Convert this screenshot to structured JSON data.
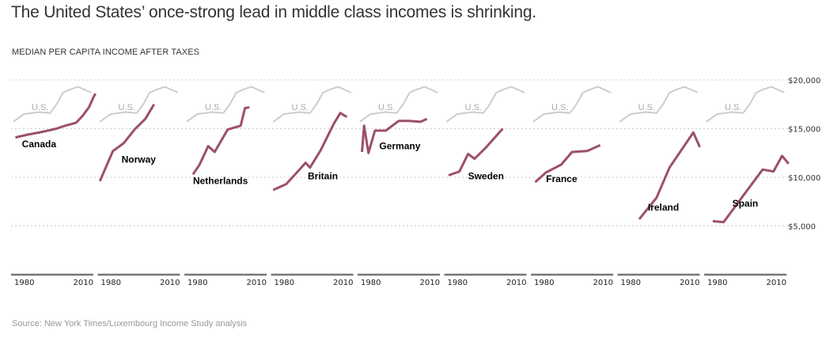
{
  "title": "The United States’ once-strong lead in middle class incomes is shrinking.",
  "subtitle": "MEDIAN PER CAPITA INCOME AFTER TAXES",
  "source": "Source: New York Times/Luxembourg Income Study analysis",
  "colors": {
    "country": "#9b4f6d",
    "us": "#cccccc",
    "grid": "#cccccc",
    "axis": "#777777"
  },
  "chart_data": {
    "type": "line",
    "layout": "small-multiples",
    "title": "The United States’ once-strong lead in middle class incomes is shrinking.",
    "ylabel": "MEDIAN PER CAPITA INCOME AFTER TAXES",
    "xlim": [
      1973,
      2011
    ],
    "ylim": [
      0,
      20000
    ],
    "yticks": [
      5000,
      10000,
      15000,
      20000
    ],
    "ytick_labels": [
      "$5,000",
      "$10,000",
      "$15,000",
      "$20,000"
    ],
    "xtick_labels": [
      "1980",
      "2010"
    ],
    "grid": true,
    "reference_series": {
      "name": "U.S.",
      "label": "U.S.",
      "points": [
        [
          1974,
          15700
        ],
        [
          1979,
          16500
        ],
        [
          1986,
          16700
        ],
        [
          1991,
          16600
        ],
        [
          1994,
          17500
        ],
        [
          1997,
          18700
        ],
        [
          2000,
          19000
        ],
        [
          2004,
          19300
        ],
        [
          2010,
          18700
        ]
      ]
    },
    "panels": [
      {
        "name": "Canada",
        "label_pos": [
          1978,
          13100
        ],
        "points": [
          [
            1975,
            14100
          ],
          [
            1981,
            14400
          ],
          [
            1986,
            14600
          ],
          [
            1990,
            14800
          ],
          [
            1994,
            15000
          ],
          [
            1998,
            15300
          ],
          [
            2003,
            15600
          ],
          [
            2006,
            16300
          ],
          [
            2009,
            17200
          ],
          [
            2011,
            18200
          ],
          [
            2012,
            18600
          ]
        ]
      },
      {
        "name": "Norway",
        "label_pos": [
          1984,
          11500
        ],
        "points": [
          [
            1974,
            9600
          ],
          [
            1980,
            12700
          ],
          [
            1985,
            13500
          ],
          [
            1990,
            14900
          ],
          [
            1995,
            16000
          ],
          [
            1999,
            17500
          ]
        ]
      },
      {
        "name": "Netherlands",
        "label_pos": [
          1977,
          9300
        ],
        "points": [
          [
            1977,
            10300
          ],
          [
            1980,
            11300
          ],
          [
            1984,
            13200
          ],
          [
            1987,
            12600
          ],
          [
            1993,
            14900
          ],
          [
            1999,
            15300
          ],
          [
            2001,
            17100
          ],
          [
            2003,
            17200
          ]
        ]
      },
      {
        "name": "Britain",
        "label_pos": [
          1990,
          9800
        ],
        "points": [
          [
            1974,
            8700
          ],
          [
            1980,
            9300
          ],
          [
            1987,
            11000
          ],
          [
            1989,
            11500
          ],
          [
            1991,
            11000
          ],
          [
            1996,
            12800
          ],
          [
            2002,
            15500
          ],
          [
            2005,
            16600
          ],
          [
            2008,
            16200
          ]
        ]
      },
      {
        "name": "Germany",
        "label_pos": [
          1983,
          12900
        ],
        "points": [
          [
            1975,
            12600
          ],
          [
            1976,
            15300
          ],
          [
            1978,
            12500
          ],
          [
            1981,
            14800
          ],
          [
            1986,
            14800
          ],
          [
            1992,
            15800
          ],
          [
            1997,
            15800
          ],
          [
            2002,
            15700
          ],
          [
            2005,
            16000
          ]
        ]
      },
      {
        "name": "Sweden",
        "label_pos": [
          1984,
          9800
        ],
        "points": [
          [
            1975,
            10200
          ],
          [
            1980,
            10600
          ],
          [
            1984,
            12400
          ],
          [
            1987,
            11900
          ],
          [
            1992,
            13000
          ],
          [
            2000,
            15000
          ]
        ]
      },
      {
        "name": "France",
        "label_pos": [
          1980,
          9500
        ],
        "points": [
          [
            1975,
            9500
          ],
          [
            1980,
            10500
          ],
          [
            1987,
            11300
          ],
          [
            1992,
            12600
          ],
          [
            1999,
            12700
          ],
          [
            2005,
            13300
          ]
        ]
      },
      {
        "name": "Ireland",
        "label_pos": [
          1987,
          6600
        ],
        "points": [
          [
            1983,
            5700
          ],
          [
            1991,
            7900
          ],
          [
            1997,
            11000
          ],
          [
            2008,
            14600
          ],
          [
            2011,
            13100
          ]
        ]
      },
      {
        "name": "Spain",
        "label_pos": [
          1986,
          7000
        ],
        "points": [
          [
            1977,
            5500
          ],
          [
            1982,
            5400
          ],
          [
            1988,
            7200
          ],
          [
            1993,
            8700
          ],
          [
            2000,
            10800
          ],
          [
            2005,
            10600
          ],
          [
            2009,
            12200
          ],
          [
            2012,
            11400
          ]
        ]
      }
    ]
  }
}
